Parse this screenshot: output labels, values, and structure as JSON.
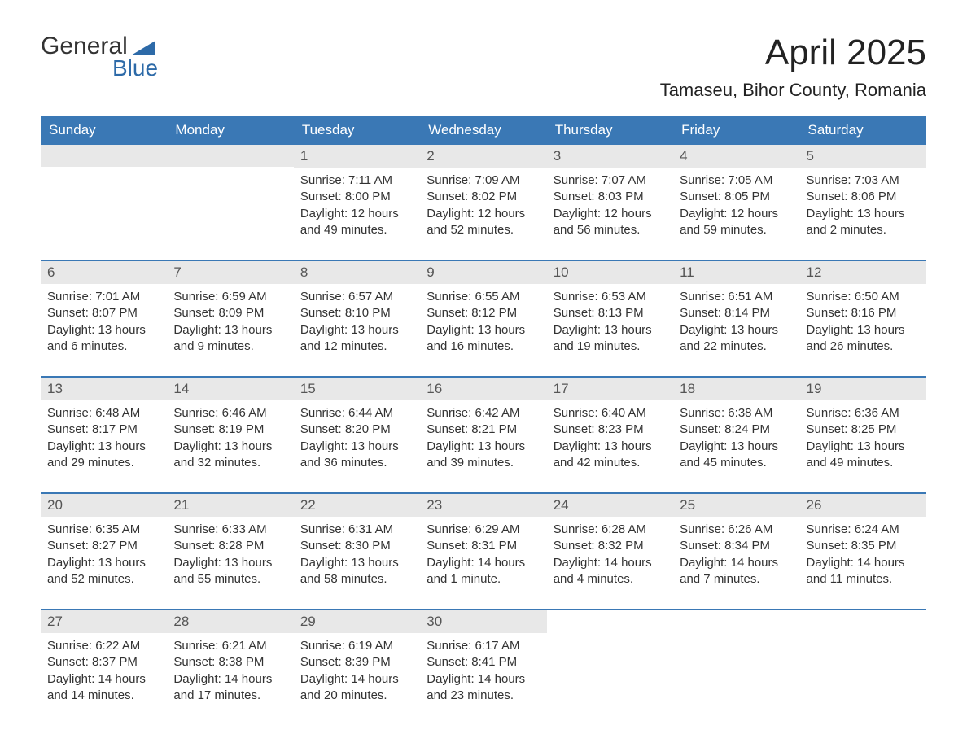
{
  "logo": {
    "text_general": "General",
    "text_blue": "Blue",
    "flag_color": "#2d6aa8"
  },
  "header": {
    "month_title": "April 2025",
    "location": "Tamaseu, Bihor County, Romania"
  },
  "colors": {
    "header_bg": "#3a78b5",
    "header_text": "#ffffff",
    "day_number_bg": "#e8e8e8",
    "day_number_text": "#555555",
    "body_text": "#333333",
    "week_border": "#3a78b5",
    "title_text": "#222222",
    "logo_general": "#333333",
    "logo_blue": "#2d6aa8",
    "background": "#ffffff"
  },
  "fonts": {
    "month_title_size": 44,
    "location_size": 22,
    "day_header_size": 17,
    "day_number_size": 17,
    "day_content_size": 15
  },
  "day_headers": [
    "Sunday",
    "Monday",
    "Tuesday",
    "Wednesday",
    "Thursday",
    "Friday",
    "Saturday"
  ],
  "weeks": [
    [
      {
        "empty": true
      },
      {
        "empty": true
      },
      {
        "day": "1",
        "sunrise": "Sunrise: 7:11 AM",
        "sunset": "Sunset: 8:00 PM",
        "daylight1": "Daylight: 12 hours",
        "daylight2": "and 49 minutes."
      },
      {
        "day": "2",
        "sunrise": "Sunrise: 7:09 AM",
        "sunset": "Sunset: 8:02 PM",
        "daylight1": "Daylight: 12 hours",
        "daylight2": "and 52 minutes."
      },
      {
        "day": "3",
        "sunrise": "Sunrise: 7:07 AM",
        "sunset": "Sunset: 8:03 PM",
        "daylight1": "Daylight: 12 hours",
        "daylight2": "and 56 minutes."
      },
      {
        "day": "4",
        "sunrise": "Sunrise: 7:05 AM",
        "sunset": "Sunset: 8:05 PM",
        "daylight1": "Daylight: 12 hours",
        "daylight2": "and 59 minutes."
      },
      {
        "day": "5",
        "sunrise": "Sunrise: 7:03 AM",
        "sunset": "Sunset: 8:06 PM",
        "daylight1": "Daylight: 13 hours",
        "daylight2": "and 2 minutes."
      }
    ],
    [
      {
        "day": "6",
        "sunrise": "Sunrise: 7:01 AM",
        "sunset": "Sunset: 8:07 PM",
        "daylight1": "Daylight: 13 hours",
        "daylight2": "and 6 minutes."
      },
      {
        "day": "7",
        "sunrise": "Sunrise: 6:59 AM",
        "sunset": "Sunset: 8:09 PM",
        "daylight1": "Daylight: 13 hours",
        "daylight2": "and 9 minutes."
      },
      {
        "day": "8",
        "sunrise": "Sunrise: 6:57 AM",
        "sunset": "Sunset: 8:10 PM",
        "daylight1": "Daylight: 13 hours",
        "daylight2": "and 12 minutes."
      },
      {
        "day": "9",
        "sunrise": "Sunrise: 6:55 AM",
        "sunset": "Sunset: 8:12 PM",
        "daylight1": "Daylight: 13 hours",
        "daylight2": "and 16 minutes."
      },
      {
        "day": "10",
        "sunrise": "Sunrise: 6:53 AM",
        "sunset": "Sunset: 8:13 PM",
        "daylight1": "Daylight: 13 hours",
        "daylight2": "and 19 minutes."
      },
      {
        "day": "11",
        "sunrise": "Sunrise: 6:51 AM",
        "sunset": "Sunset: 8:14 PM",
        "daylight1": "Daylight: 13 hours",
        "daylight2": "and 22 minutes."
      },
      {
        "day": "12",
        "sunrise": "Sunrise: 6:50 AM",
        "sunset": "Sunset: 8:16 PM",
        "daylight1": "Daylight: 13 hours",
        "daylight2": "and 26 minutes."
      }
    ],
    [
      {
        "day": "13",
        "sunrise": "Sunrise: 6:48 AM",
        "sunset": "Sunset: 8:17 PM",
        "daylight1": "Daylight: 13 hours",
        "daylight2": "and 29 minutes."
      },
      {
        "day": "14",
        "sunrise": "Sunrise: 6:46 AM",
        "sunset": "Sunset: 8:19 PM",
        "daylight1": "Daylight: 13 hours",
        "daylight2": "and 32 minutes."
      },
      {
        "day": "15",
        "sunrise": "Sunrise: 6:44 AM",
        "sunset": "Sunset: 8:20 PM",
        "daylight1": "Daylight: 13 hours",
        "daylight2": "and 36 minutes."
      },
      {
        "day": "16",
        "sunrise": "Sunrise: 6:42 AM",
        "sunset": "Sunset: 8:21 PM",
        "daylight1": "Daylight: 13 hours",
        "daylight2": "and 39 minutes."
      },
      {
        "day": "17",
        "sunrise": "Sunrise: 6:40 AM",
        "sunset": "Sunset: 8:23 PM",
        "daylight1": "Daylight: 13 hours",
        "daylight2": "and 42 minutes."
      },
      {
        "day": "18",
        "sunrise": "Sunrise: 6:38 AM",
        "sunset": "Sunset: 8:24 PM",
        "daylight1": "Daylight: 13 hours",
        "daylight2": "and 45 minutes."
      },
      {
        "day": "19",
        "sunrise": "Sunrise: 6:36 AM",
        "sunset": "Sunset: 8:25 PM",
        "daylight1": "Daylight: 13 hours",
        "daylight2": "and 49 minutes."
      }
    ],
    [
      {
        "day": "20",
        "sunrise": "Sunrise: 6:35 AM",
        "sunset": "Sunset: 8:27 PM",
        "daylight1": "Daylight: 13 hours",
        "daylight2": "and 52 minutes."
      },
      {
        "day": "21",
        "sunrise": "Sunrise: 6:33 AM",
        "sunset": "Sunset: 8:28 PM",
        "daylight1": "Daylight: 13 hours",
        "daylight2": "and 55 minutes."
      },
      {
        "day": "22",
        "sunrise": "Sunrise: 6:31 AM",
        "sunset": "Sunset: 8:30 PM",
        "daylight1": "Daylight: 13 hours",
        "daylight2": "and 58 minutes."
      },
      {
        "day": "23",
        "sunrise": "Sunrise: 6:29 AM",
        "sunset": "Sunset: 8:31 PM",
        "daylight1": "Daylight: 14 hours",
        "daylight2": "and 1 minute."
      },
      {
        "day": "24",
        "sunrise": "Sunrise: 6:28 AM",
        "sunset": "Sunset: 8:32 PM",
        "daylight1": "Daylight: 14 hours",
        "daylight2": "and 4 minutes."
      },
      {
        "day": "25",
        "sunrise": "Sunrise: 6:26 AM",
        "sunset": "Sunset: 8:34 PM",
        "daylight1": "Daylight: 14 hours",
        "daylight2": "and 7 minutes."
      },
      {
        "day": "26",
        "sunrise": "Sunrise: 6:24 AM",
        "sunset": "Sunset: 8:35 PM",
        "daylight1": "Daylight: 14 hours",
        "daylight2": "and 11 minutes."
      }
    ],
    [
      {
        "day": "27",
        "sunrise": "Sunrise: 6:22 AM",
        "sunset": "Sunset: 8:37 PM",
        "daylight1": "Daylight: 14 hours",
        "daylight2": "and 14 minutes."
      },
      {
        "day": "28",
        "sunrise": "Sunrise: 6:21 AM",
        "sunset": "Sunset: 8:38 PM",
        "daylight1": "Daylight: 14 hours",
        "daylight2": "and 17 minutes."
      },
      {
        "day": "29",
        "sunrise": "Sunrise: 6:19 AM",
        "sunset": "Sunset: 8:39 PM",
        "daylight1": "Daylight: 14 hours",
        "daylight2": "and 20 minutes."
      },
      {
        "day": "30",
        "sunrise": "Sunrise: 6:17 AM",
        "sunset": "Sunset: 8:41 PM",
        "daylight1": "Daylight: 14 hours",
        "daylight2": "and 23 minutes."
      },
      {
        "empty": true,
        "no_bg": true
      },
      {
        "empty": true,
        "no_bg": true
      },
      {
        "empty": true,
        "no_bg": true
      }
    ]
  ]
}
